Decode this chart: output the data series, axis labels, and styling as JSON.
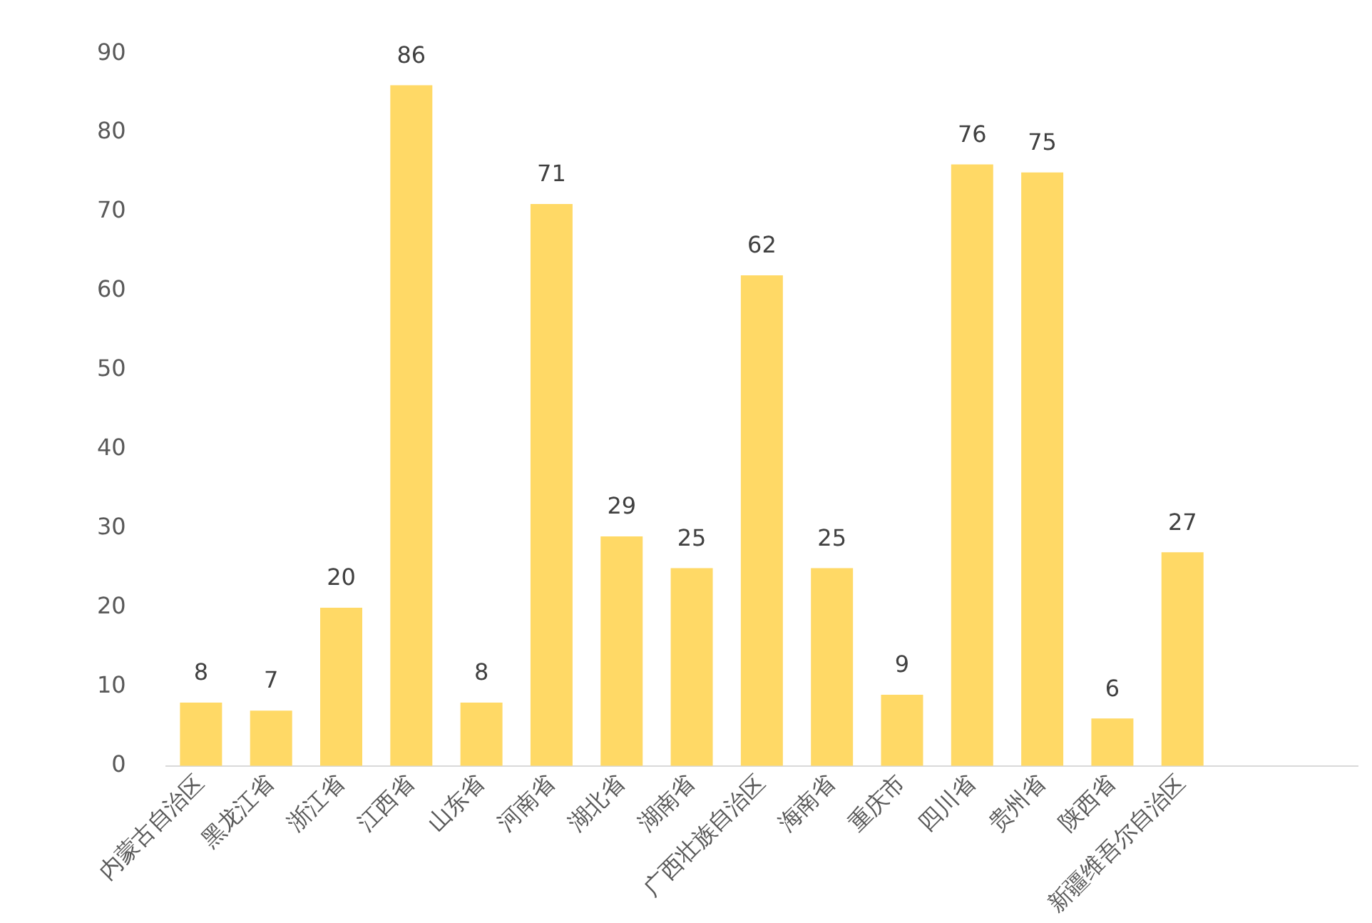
{
  "chart_data": {
    "type": "bar",
    "categories": [
      "内蒙古自治区",
      "黑龙江省",
      "浙江省",
      "江西省",
      "山东省",
      "河南省",
      "湖北省",
      "湖南省",
      "广西壮族自治区",
      "海南省",
      "重庆市",
      "四川省",
      "贵州省",
      "陕西省",
      "新疆维吾尔自治区",
      null,
      null
    ],
    "values": [
      8,
      7,
      20,
      86,
      8,
      71,
      29,
      25,
      62,
      25,
      9,
      76,
      75,
      6,
      27,
      null,
      null
    ],
    "color": "#ffd966",
    "ylim": [
      0,
      90
    ],
    "yticks": [
      0,
      10,
      20,
      30,
      40,
      50,
      60,
      70,
      80,
      90
    ],
    "grid": false,
    "legend": false,
    "data_labels": true
  }
}
